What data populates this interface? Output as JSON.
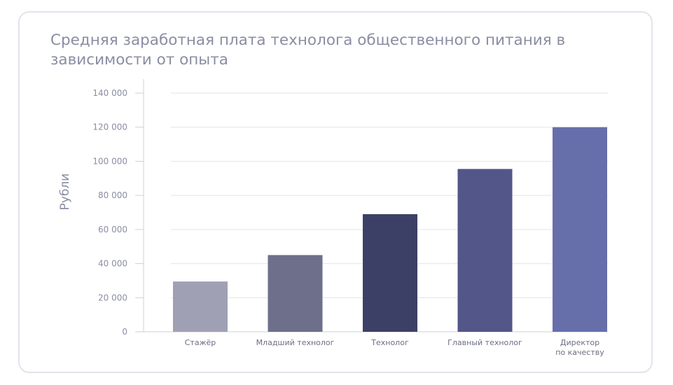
{
  "chart_data": {
    "type": "bar",
    "title": "Средняя заработная плата технолога общественного питания в зависимости от опыта",
    "ylabel": "Рубли",
    "xlabel": "",
    "ylim": [
      0,
      140000
    ],
    "yticks": [
      0,
      20000,
      40000,
      60000,
      80000,
      100000,
      120000,
      140000
    ],
    "ytick_labels": [
      "0",
      "20 000",
      "40 000",
      "60 000",
      "80 000",
      "100 000",
      "120 000",
      "140 000"
    ],
    "categories": [
      [
        "Стажёр"
      ],
      [
        "Младший технолог"
      ],
      [
        "Технолог"
      ],
      [
        "Главный технолог"
      ],
      [
        "Директор",
        "по качеству"
      ]
    ],
    "values": [
      29500,
      45000,
      69000,
      95500,
      120000
    ],
    "colors": [
      "#a0a0b4",
      "#6e6f8a",
      "#3d4066",
      "#525688",
      "#676fab"
    ],
    "grid": true
  }
}
